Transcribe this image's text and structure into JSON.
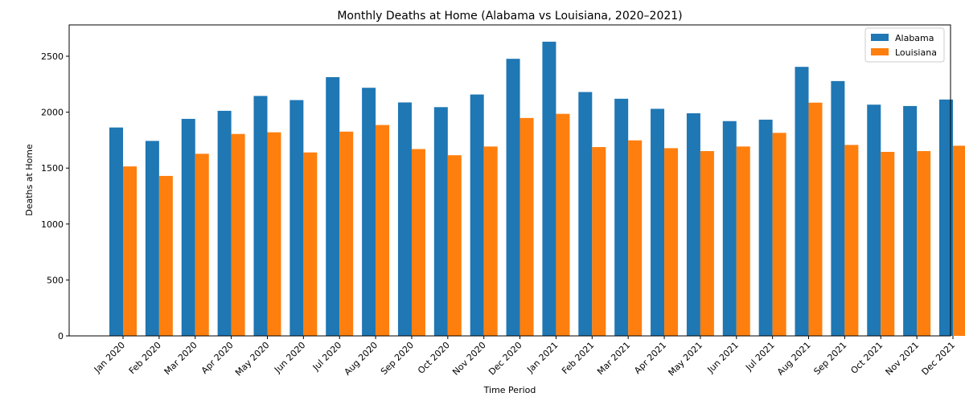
{
  "chart_data": {
    "type": "bar",
    "title": "Monthly Deaths at Home (Alabama vs Louisiana, 2020–2021)",
    "xlabel": "Time Period",
    "ylabel": "Deaths at Home",
    "ylim": [
      0,
      2780
    ],
    "yticks": [
      0,
      500,
      1000,
      1500,
      2000,
      2500
    ],
    "legend_position": "top-right",
    "categories": [
      "Jan 2020",
      "Feb 2020",
      "Mar 2020",
      "Apr 2020",
      "May 2020",
      "Jun 2020",
      "Jul 2020",
      "Aug 2020",
      "Sep 2020",
      "Oct 2020",
      "Nov 2020",
      "Dec 2020",
      "Jan 2021",
      "Feb 2021",
      "Mar 2021",
      "Apr 2021",
      "May 2021",
      "Jun 2021",
      "Jul 2021",
      "Aug 2021",
      "Sep 2021",
      "Oct 2021",
      "Nov 2021",
      "Dec 2021"
    ],
    "series": [
      {
        "name": "Alabama",
        "color": "#1f77b4",
        "values": [
          1863,
          1743,
          1940,
          2012,
          2145,
          2108,
          2313,
          2218,
          2087,
          2045,
          2158,
          2477,
          2630,
          2180,
          2120,
          2030,
          1990,
          1920,
          1933,
          2405,
          2278,
          2067,
          2055,
          2113
        ]
      },
      {
        "name": "Louisiana",
        "color": "#ff7f0e",
        "values": [
          1515,
          1430,
          1628,
          1805,
          1820,
          1640,
          1826,
          1885,
          1670,
          1615,
          1693,
          1948,
          1985,
          1688,
          1748,
          1678,
          1652,
          1693,
          1815,
          2085,
          1707,
          1645,
          1652,
          1700
        ]
      }
    ]
  }
}
